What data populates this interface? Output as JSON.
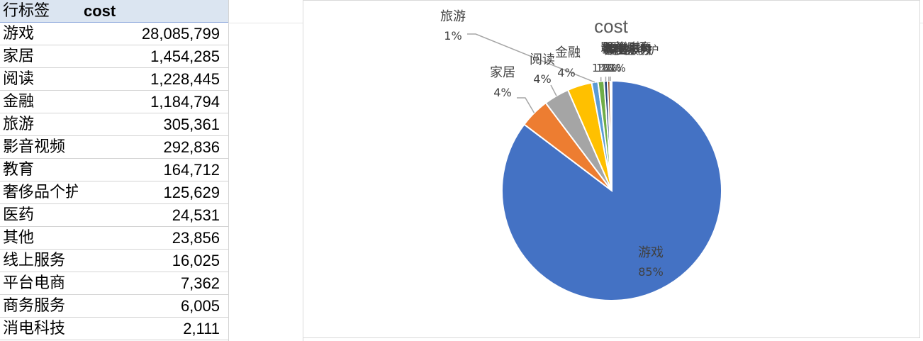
{
  "sheet": {
    "header": {
      "label_col": "行标签",
      "value_col": "cost"
    },
    "rows": [
      {
        "label": "游戏",
        "value": "28,085,799"
      },
      {
        "label": "家居",
        "value": "1,454,285"
      },
      {
        "label": "阅读",
        "value": "1,228,445"
      },
      {
        "label": "金融",
        "value": "1,184,794"
      },
      {
        "label": "旅游",
        "value": "305,361"
      },
      {
        "label": "影音视频",
        "value": "292,836"
      },
      {
        "label": "教育",
        "value": "164,712"
      },
      {
        "label": "奢侈品个护",
        "value": "125,629"
      },
      {
        "label": "医药",
        "value": "24,531"
      },
      {
        "label": "其他",
        "value": "23,856"
      },
      {
        "label": "线上服务",
        "value": "16,025"
      },
      {
        "label": "平台电商",
        "value": "7,362"
      },
      {
        "label": "商务服务",
        "value": "6,005"
      },
      {
        "label": "消电科技",
        "value": "2,111"
      }
    ]
  },
  "chart_data": {
    "type": "pie",
    "title": "cost",
    "categories": [
      "游戏",
      "家居",
      "阅读",
      "金融",
      "旅游",
      "影音视频",
      "教育",
      "奢侈品个护",
      "医药",
      "其他",
      "线上服务",
      "平台电商",
      "商务服务",
      "消电科技"
    ],
    "values": [
      28085799,
      1454285,
      1228445,
      1184794,
      305361,
      292836,
      164712,
      125629,
      24531,
      23856,
      16025,
      7362,
      6005,
      2111
    ],
    "colors": [
      "#4472c4",
      "#ed7d31",
      "#a5a5a5",
      "#ffc000",
      "#5b9bd5",
      "#70ad47",
      "#264478",
      "#9e480e",
      "#636363",
      "#997300",
      "#255e91",
      "#43682b",
      "#698ed0",
      "#f1975a"
    ],
    "data_labels": [
      {
        "name": "游戏",
        "percent": "85%"
      },
      {
        "name": "家居",
        "percent": "4%"
      },
      {
        "name": "阅读",
        "percent": "4%"
      },
      {
        "name": "金融",
        "percent": "4%"
      },
      {
        "name": "旅游",
        "percent": "1%"
      }
    ],
    "small_labels_overlap": "1%",
    "legend": "none"
  }
}
